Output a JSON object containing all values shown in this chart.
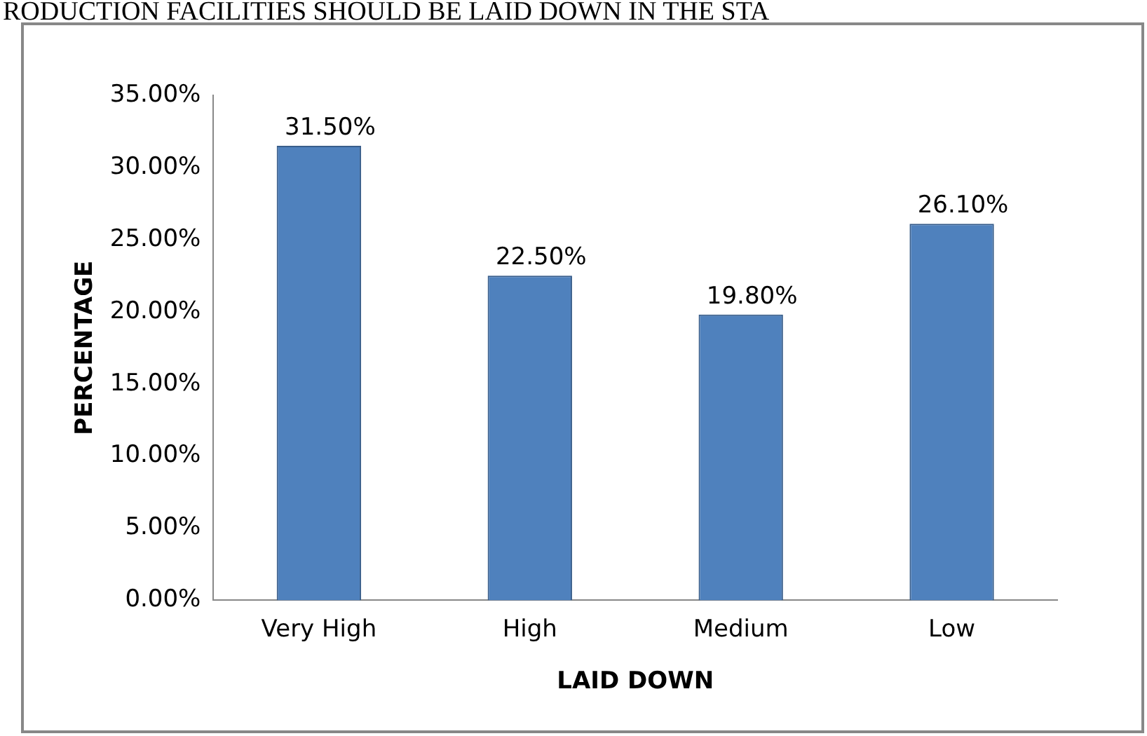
{
  "chart_data": {
    "type": "bar",
    "title": "RODUCTION FACILITIES SHOULD BE LAID DOWN IN THE STA",
    "xlabel": "LAID DOWN",
    "ylabel": "PERCENTAGE",
    "categories": [
      "Very High",
      "High",
      "Medium",
      "Low"
    ],
    "values": [
      31.5,
      22.5,
      19.8,
      26.1
    ],
    "value_labels": [
      "31.50%",
      "22.50%",
      "19.80%",
      "26.10%"
    ],
    "color": "#4f81bd",
    "ylim": [
      0,
      35
    ],
    "yticks": [
      {
        "value": 0,
        "label": "0.00%"
      },
      {
        "value": 5,
        "label": "5.00%"
      },
      {
        "value": 10,
        "label": "10.00%"
      },
      {
        "value": 15,
        "label": "15.00%"
      },
      {
        "value": 20,
        "label": "20.00%"
      },
      {
        "value": 25,
        "label": "25.00%"
      },
      {
        "value": 30,
        "label": "30.00%"
      },
      {
        "value": 35,
        "label": "35.00%"
      }
    ],
    "grid": false,
    "legend": false
  }
}
